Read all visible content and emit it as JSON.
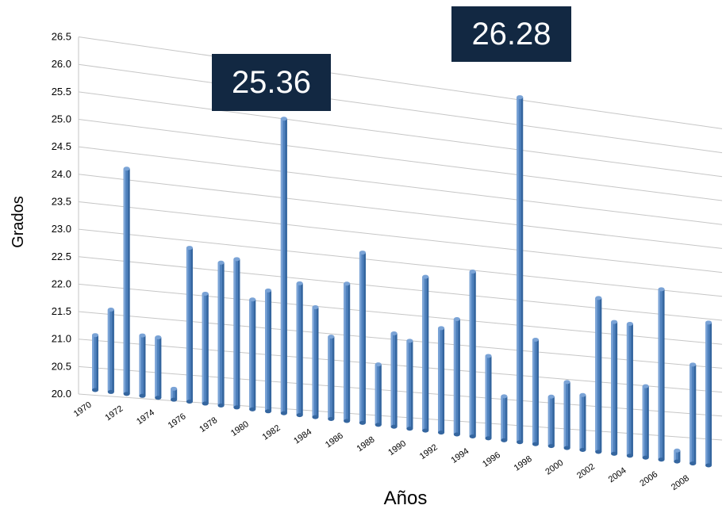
{
  "chart_data": {
    "type": "bar",
    "title": "",
    "xlabel": "Años",
    "ylabel": "Grados",
    "ylim": [
      20.0,
      26.5
    ],
    "y_ticks": [
      "20.0",
      "20.5",
      "21.0",
      "21.5",
      "22.0",
      "22.5",
      "23.0",
      "23.5",
      "24.0",
      "24.5",
      "25.0",
      "25.5",
      "26.0",
      "26.5"
    ],
    "x_tick_labels": [
      "1970",
      "1972",
      "1974",
      "1976",
      "1978",
      "1980",
      "1982",
      "1984",
      "1986",
      "1988",
      "1990",
      "1992",
      "1994",
      "1996",
      "1998",
      "2000",
      "2002",
      "2004",
      "2006",
      "2008"
    ],
    "categories": [
      "1970",
      "1971",
      "1972",
      "1973",
      "1974",
      "1975",
      "1976",
      "1977",
      "1978",
      "1979",
      "1980",
      "1981",
      "1982",
      "1983",
      "1984",
      "1985",
      "1986",
      "1987",
      "1988",
      "1989",
      "1990",
      "1991",
      "1992",
      "1993",
      "1994",
      "1995",
      "1996",
      "1997",
      "1998",
      "1999",
      "2000",
      "2001",
      "2002",
      "2003",
      "2004",
      "2005",
      "2006",
      "2007",
      "2008",
      "2009"
    ],
    "values": [
      21.0,
      21.5,
      24.1,
      21.1,
      21.1,
      20.2,
      22.8,
      22.0,
      22.6,
      22.7,
      22.0,
      22.2,
      25.36,
      22.4,
      22.0,
      21.5,
      22.5,
      23.1,
      21.1,
      21.7,
      21.6,
      22.8,
      21.9,
      22.1,
      23.0,
      21.5,
      20.8,
      26.28,
      21.9,
      20.9,
      21.2,
      21.0,
      22.8,
      22.4,
      22.4,
      21.3,
      23.1,
      20.2,
      21.8,
      22.6
    ],
    "annotations": [
      {
        "category": "1982",
        "text": "25.36"
      },
      {
        "category": "1997",
        "text": "26.28"
      }
    ],
    "grid": true,
    "colors": {
      "bar": "#4f81bd",
      "bar_dark": "#35669f",
      "bar_light": "#7aa3d6",
      "callout_bg": "#122842",
      "callout_text": "#ffffff",
      "grid": "#c6c6c6"
    }
  }
}
